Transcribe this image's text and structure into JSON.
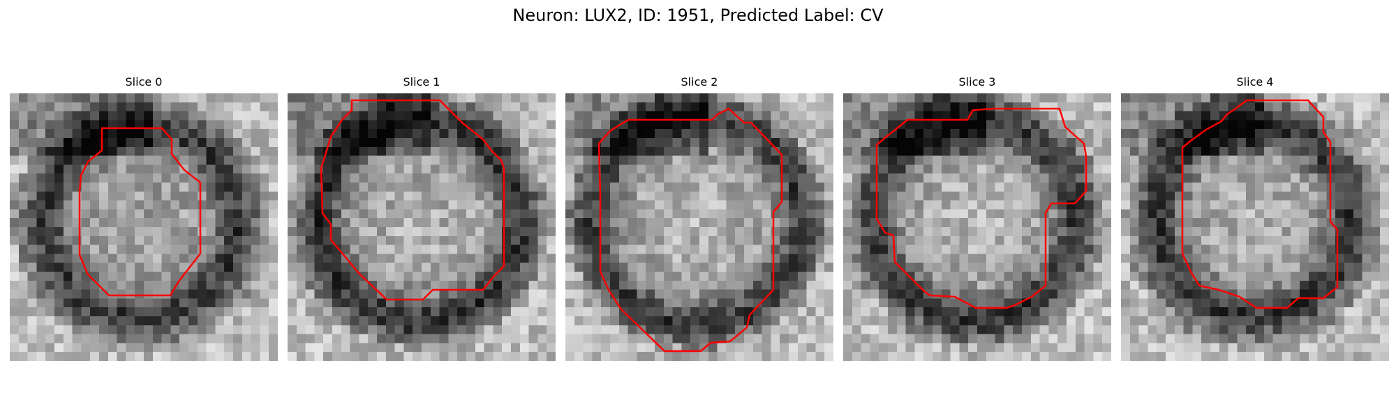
{
  "figure": {
    "suptitle": "Neuron: LUX2, ID: 1951, Predicted Label: CV"
  },
  "colors": {
    "contour": "#ff0000",
    "background": "#ffffff"
  },
  "slices": [
    {
      "title": "Slice 0"
    },
    {
      "title": "Slice 1"
    },
    {
      "title": "Slice 2"
    },
    {
      "title": "Slice 3"
    },
    {
      "title": "Slice 4"
    }
  ]
}
